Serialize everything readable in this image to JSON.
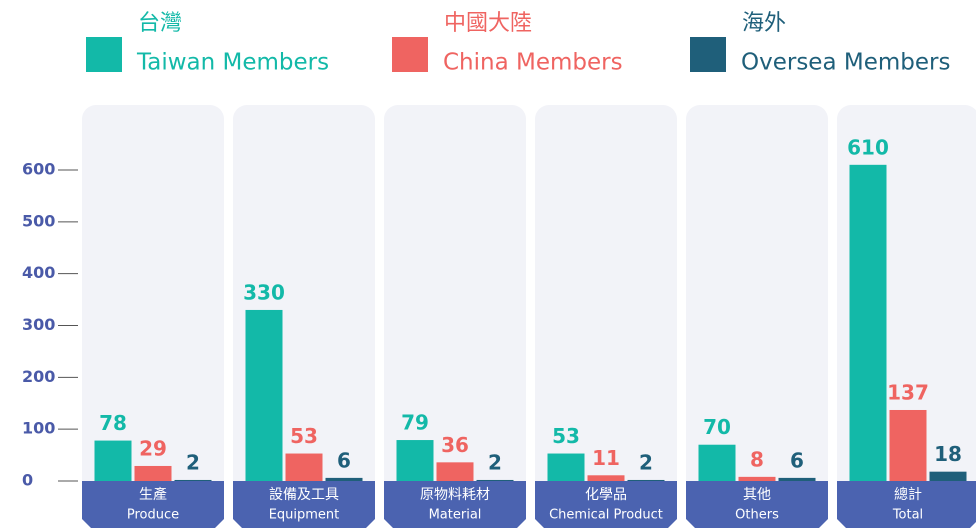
{
  "chart_data": {
    "type": "bar",
    "categories": [
      "Produce",
      "Equipment",
      "Material",
      "Chemical Product",
      "Others",
      "Total"
    ],
    "categories_zh": [
      "生產",
      "設備及工具",
      "原物料耗材",
      "化學品",
      "其他",
      "總計"
    ],
    "series": [
      {
        "name": "Taiwan Members",
        "name_zh": "台灣",
        "color": "#13b9a8",
        "values": [
          78,
          330,
          79,
          53,
          70,
          610
        ]
      },
      {
        "name": "China Members",
        "name_zh": "中國大陸",
        "color": "#ef6461",
        "values": [
          29,
          53,
          36,
          11,
          8,
          137
        ]
      },
      {
        "name": "Oversea Members",
        "name_zh": "海外",
        "color": "#1f5f7a",
        "values": [
          2,
          6,
          2,
          2,
          6,
          18
        ]
      }
    ],
    "ylim": [
      0,
      600
    ],
    "yticks": [
      0,
      100,
      200,
      300,
      400,
      500,
      600
    ]
  }
}
